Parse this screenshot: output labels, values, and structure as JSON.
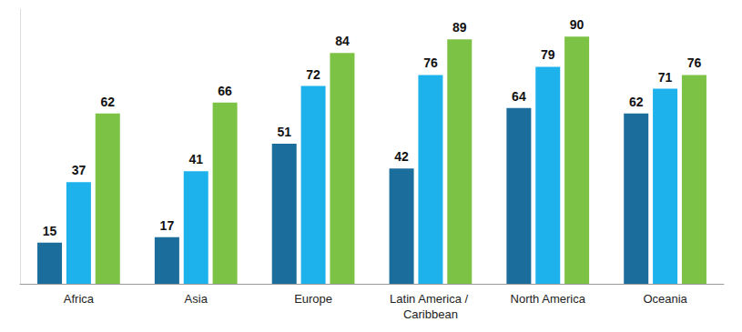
{
  "chart_data": {
    "type": "bar",
    "categories": [
      "Africa",
      "Asia",
      "Europe",
      "Latin America / Caribbean",
      "North America",
      "Oceania"
    ],
    "series": [
      {
        "color": "#1b6d9b",
        "values": [
          15,
          17,
          51,
          42,
          64,
          62
        ]
      },
      {
        "color": "#1db2ec",
        "values": [
          37,
          41,
          72,
          76,
          79,
          71
        ]
      },
      {
        "color": "#7cc245",
        "values": [
          62,
          66,
          84,
          89,
          90,
          76
        ]
      }
    ],
    "ylim": [
      0,
      100
    ],
    "grid": false,
    "data_labels": true,
    "tick_labels": "x"
  }
}
